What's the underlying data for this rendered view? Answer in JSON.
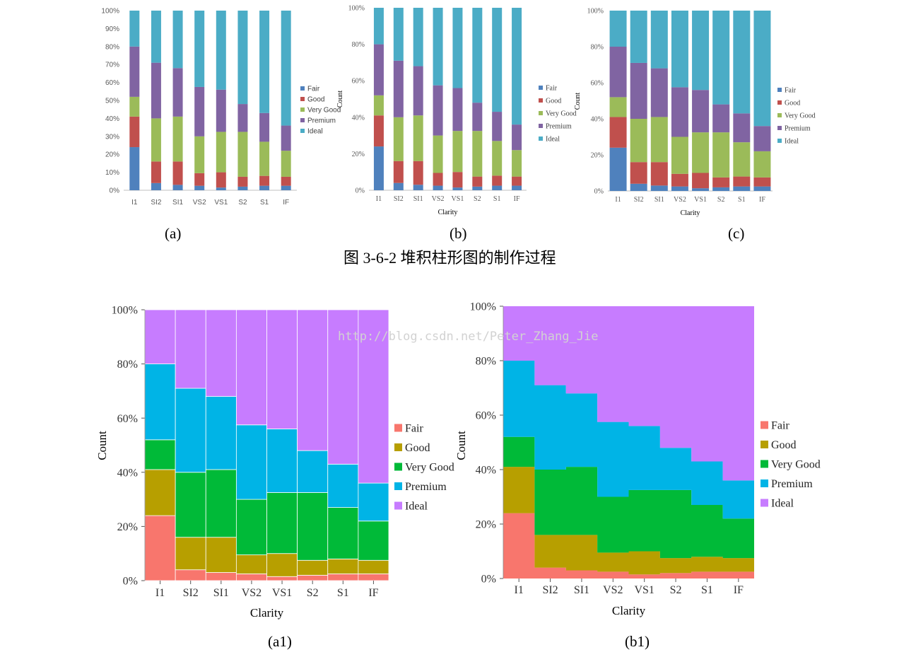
{
  "figure_caption": "图 3-6-2  堆积柱形图的制作过程",
  "watermark": "http://blog.csdn.net/Peter_Zhang_Jie",
  "chart_data": [
    {
      "id": "a",
      "type": "bar",
      "stacked": true,
      "normalized": true,
      "panel_label": "(a)",
      "title": "",
      "xlabel": "",
      "ylabel": "",
      "ylim": [
        0,
        100
      ],
      "y_ticks": [
        "0%",
        "10%",
        "20%",
        "30%",
        "40%",
        "50%",
        "60%",
        "70%",
        "80%",
        "90%",
        "100%"
      ],
      "categories": [
        "I1",
        "SI2",
        "SI1",
        "VS2",
        "VS1",
        "S2",
        "S1",
        "IF"
      ],
      "legend_position": "right",
      "series": [
        {
          "name": "Fair",
          "color": "#4F81BD",
          "values": [
            24,
            4,
            3,
            2.5,
            1.5,
            2,
            2.5,
            2.5
          ]
        },
        {
          "name": "Good",
          "color": "#C0504D",
          "values": [
            17,
            12,
            13,
            7,
            8.5,
            5.5,
            5.5,
            5
          ]
        },
        {
          "name": "Very Good",
          "color": "#9BBB59",
          "values": [
            11,
            24,
            25,
            20.5,
            22.5,
            25,
            19,
            14.5
          ]
        },
        {
          "name": "Premium",
          "color": "#8064A2",
          "values": [
            28,
            31,
            27,
            27.5,
            23.5,
            15.5,
            16,
            14
          ]
        },
        {
          "name": "Ideal",
          "color": "#4BACC6",
          "values": [
            20,
            29,
            32,
            42.5,
            44,
            52,
            57,
            64
          ]
        }
      ]
    },
    {
      "id": "b",
      "type": "bar",
      "stacked": true,
      "normalized": true,
      "panel_label": "(b)",
      "title": "",
      "xlabel": "Clarity",
      "ylabel": "Count",
      "ylim": [
        0,
        100
      ],
      "y_ticks": [
        "0%",
        "20%",
        "40%",
        "60%",
        "80%",
        "100%"
      ],
      "categories": [
        "I1",
        "SI2",
        "SI1",
        "VS2",
        "VS1",
        "S2",
        "S1",
        "IF"
      ],
      "legend_position": "right",
      "series": [
        {
          "name": "Fair",
          "color": "#4F81BD",
          "values": [
            24,
            4,
            3,
            2.5,
            1.5,
            2,
            2.5,
            2.5
          ]
        },
        {
          "name": "Good",
          "color": "#C0504D",
          "values": [
            17,
            12,
            13,
            7,
            8.5,
            5.5,
            5.5,
            5
          ]
        },
        {
          "name": "Very Good",
          "color": "#9BBB59",
          "values": [
            11,
            24,
            25,
            20.5,
            22.5,
            25,
            19,
            14.5
          ]
        },
        {
          "name": "Premium",
          "color": "#8064A2",
          "values": [
            28,
            31,
            27,
            27.5,
            23.5,
            15.5,
            16,
            14
          ]
        },
        {
          "name": "Ideal",
          "color": "#4BACC6",
          "values": [
            20,
            29,
            32,
            42.5,
            44,
            52,
            57,
            64
          ]
        }
      ]
    },
    {
      "id": "c",
      "type": "bar",
      "stacked": true,
      "normalized": true,
      "panel_label": "(c)",
      "title": "",
      "xlabel": "Clarity",
      "ylabel": "Count",
      "ylim": [
        0,
        100
      ],
      "y_ticks": [
        "0%",
        "20%",
        "40%",
        "60%",
        "80%",
        "100%"
      ],
      "categories": [
        "I1",
        "SI2",
        "SI1",
        "VS2",
        "VS1",
        "S2",
        "S1",
        "IF"
      ],
      "legend_position": "right",
      "series": [
        {
          "name": "Fair",
          "color": "#4F81BD",
          "values": [
            24,
            4,
            3,
            2.5,
            1.5,
            2,
            2.5,
            2.5
          ]
        },
        {
          "name": "Good",
          "color": "#C0504D",
          "values": [
            17,
            12,
            13,
            7,
            8.5,
            5.5,
            5.5,
            5
          ]
        },
        {
          "name": "Very Good",
          "color": "#9BBB59",
          "values": [
            11,
            24,
            25,
            20.5,
            22.5,
            25,
            19,
            14.5
          ]
        },
        {
          "name": "Premium",
          "color": "#8064A2",
          "values": [
            28,
            31,
            27,
            27.5,
            23.5,
            15.5,
            16,
            14
          ]
        },
        {
          "name": "Ideal",
          "color": "#4BACC6",
          "values": [
            20,
            29,
            32,
            42.5,
            44,
            52,
            57,
            64
          ]
        }
      ]
    },
    {
      "id": "a1",
      "type": "bar",
      "stacked": true,
      "normalized": true,
      "panel_label": "(a1)",
      "title": "",
      "xlabel": "Clarity",
      "ylabel": "Count",
      "ylim": [
        0,
        100
      ],
      "y_ticks": [
        "0%",
        "20%",
        "40%",
        "60%",
        "80%",
        "100%"
      ],
      "categories": [
        "I1",
        "SI2",
        "SI1",
        "VS2",
        "VS1",
        "S2",
        "S1",
        "IF"
      ],
      "legend_position": "right",
      "series": [
        {
          "name": "Fair",
          "color": "#F8766D",
          "values": [
            24,
            4,
            3,
            2.5,
            1.5,
            2,
            2.5,
            2.5
          ]
        },
        {
          "name": "Good",
          "color": "#B79F00",
          "values": [
            17,
            12,
            13,
            7,
            8.5,
            5.5,
            5.5,
            5
          ]
        },
        {
          "name": "Very Good",
          "color": "#00BA38",
          "values": [
            11,
            24,
            25,
            20.5,
            22.5,
            25,
            19,
            14.5
          ]
        },
        {
          "name": "Premium",
          "color": "#00B4E6",
          "values": [
            28,
            31,
            27,
            27.5,
            23.5,
            15.5,
            16,
            14
          ]
        },
        {
          "name": "Ideal",
          "color": "#C77CFF",
          "values": [
            20,
            29,
            32,
            42.5,
            44,
            52,
            57,
            64
          ]
        }
      ]
    },
    {
      "id": "b1",
      "type": "bar",
      "stacked": true,
      "normalized": true,
      "panel_label": "(b1)",
      "title": "",
      "xlabel": "Clarity",
      "ylabel": "Count",
      "ylim": [
        0,
        100
      ],
      "y_ticks": [
        "0%",
        "20%",
        "40%",
        "60%",
        "80%",
        "100%"
      ],
      "categories": [
        "I1",
        "SI2",
        "SI1",
        "VS2",
        "VS1",
        "S2",
        "S1",
        "IF"
      ],
      "legend_position": "right",
      "series": [
        {
          "name": "Fair",
          "color": "#F8766D",
          "values": [
            24,
            4,
            3,
            2.5,
            1.5,
            2,
            2.5,
            2.5
          ]
        },
        {
          "name": "Good",
          "color": "#B79F00",
          "values": [
            17,
            12,
            13,
            7,
            8.5,
            5.5,
            5.5,
            5
          ]
        },
        {
          "name": "Very Good",
          "color": "#00BA38",
          "values": [
            11,
            24,
            25,
            20.5,
            22.5,
            25,
            19,
            14.5
          ]
        },
        {
          "name": "Premium",
          "color": "#00B4E6",
          "values": [
            28,
            31,
            27,
            27.5,
            23.5,
            15.5,
            16,
            14
          ]
        },
        {
          "name": "Ideal",
          "color": "#C77CFF",
          "values": [
            20,
            29,
            32,
            42.5,
            44,
            52,
            57,
            64
          ]
        }
      ]
    }
  ]
}
